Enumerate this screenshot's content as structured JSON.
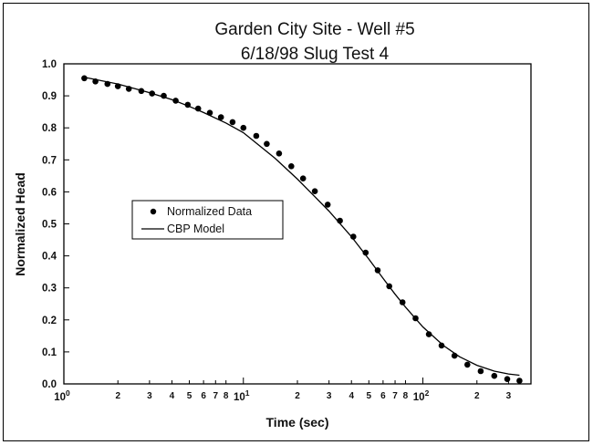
{
  "chart_data": {
    "type": "scatter",
    "title_line1": "Garden City Site - Well #5",
    "title_line2": "6/18/98 Slug Test 4",
    "xlabel": "Time (sec)",
    "ylabel": "Normalized Head",
    "x_scale": "log",
    "xlim": [
      1,
      400
    ],
    "ylim": [
      0,
      1.0
    ],
    "x_major_ticks": [
      {
        "value": 1,
        "base": "10",
        "exp": "0"
      },
      {
        "value": 10,
        "base": "10",
        "exp": "1"
      },
      {
        "value": 100,
        "base": "10",
        "exp": "2"
      }
    ],
    "x_minor_ticks": [
      {
        "value": 2,
        "label": "2"
      },
      {
        "value": 3,
        "label": "3"
      },
      {
        "value": 4,
        "label": "4"
      },
      {
        "value": 5,
        "label": "5"
      },
      {
        "value": 6,
        "label": "6"
      },
      {
        "value": 7,
        "label": "7"
      },
      {
        "value": 8,
        "label": "8"
      },
      {
        "value": 20,
        "label": "2"
      },
      {
        "value": 30,
        "label": "3"
      },
      {
        "value": 40,
        "label": "4"
      },
      {
        "value": 50,
        "label": "5"
      },
      {
        "value": 60,
        "label": "6"
      },
      {
        "value": 70,
        "label": "7"
      },
      {
        "value": 80,
        "label": "8"
      },
      {
        "value": 200,
        "label": "2"
      },
      {
        "value": 300,
        "label": "3"
      }
    ],
    "y_ticks": [
      {
        "value": 0.0,
        "label": "0.0"
      },
      {
        "value": 0.1,
        "label": "0.1"
      },
      {
        "value": 0.2,
        "label": "0.2"
      },
      {
        "value": 0.3,
        "label": "0.3"
      },
      {
        "value": 0.4,
        "label": "0.4"
      },
      {
        "value": 0.5,
        "label": "0.5"
      },
      {
        "value": 0.6,
        "label": "0.6"
      },
      {
        "value": 0.7,
        "label": "0.7"
      },
      {
        "value": 0.8,
        "label": "0.8"
      },
      {
        "value": 0.9,
        "label": "0.9"
      },
      {
        "value": 1.0,
        "label": "1.0"
      }
    ],
    "legend_position": "left-middle",
    "series": [
      {
        "name": "Normalized Data",
        "style": "points",
        "color": "#000000",
        "points": [
          [
            1.3,
            0.955
          ],
          [
            1.5,
            0.945
          ],
          [
            1.75,
            0.937
          ],
          [
            2.0,
            0.93
          ],
          [
            2.3,
            0.922
          ],
          [
            2.7,
            0.915
          ],
          [
            3.1,
            0.907
          ],
          [
            3.6,
            0.9
          ],
          [
            4.2,
            0.885
          ],
          [
            4.9,
            0.872
          ],
          [
            5.6,
            0.86
          ],
          [
            6.5,
            0.847
          ],
          [
            7.5,
            0.833
          ],
          [
            8.7,
            0.818
          ],
          [
            10.0,
            0.8
          ],
          [
            11.8,
            0.775
          ],
          [
            13.5,
            0.75
          ],
          [
            15.8,
            0.72
          ],
          [
            18.5,
            0.68
          ],
          [
            21.5,
            0.642
          ],
          [
            25.0,
            0.602
          ],
          [
            29.5,
            0.56
          ],
          [
            34.5,
            0.51
          ],
          [
            41.0,
            0.46
          ],
          [
            48.0,
            0.41
          ],
          [
            56.0,
            0.355
          ],
          [
            65.0,
            0.305
          ],
          [
            77.0,
            0.255
          ],
          [
            91.0,
            0.205
          ],
          [
            108.0,
            0.155
          ],
          [
            127.0,
            0.12
          ],
          [
            150.0,
            0.088
          ],
          [
            177.0,
            0.06
          ],
          [
            210.0,
            0.04
          ],
          [
            250.0,
            0.025
          ],
          [
            295.0,
            0.015
          ],
          [
            345.0,
            0.01
          ]
        ]
      },
      {
        "name": "CBP Model",
        "style": "line",
        "color": "#000000",
        "points": [
          [
            1.3,
            0.958
          ],
          [
            2.0,
            0.937
          ],
          [
            3.0,
            0.91
          ],
          [
            4.0,
            0.888
          ],
          [
            5.0,
            0.867
          ],
          [
            6.0,
            0.848
          ],
          [
            8.0,
            0.815
          ],
          [
            10.0,
            0.785
          ],
          [
            15.0,
            0.705
          ],
          [
            20.0,
            0.64
          ],
          [
            25.0,
            0.585
          ],
          [
            30.0,
            0.54
          ],
          [
            40.0,
            0.46
          ],
          [
            50.0,
            0.39
          ],
          [
            60.0,
            0.33
          ],
          [
            70.0,
            0.28
          ],
          [
            80.0,
            0.24
          ],
          [
            100.0,
            0.178
          ],
          [
            130.0,
            0.12
          ],
          [
            160.0,
            0.085
          ],
          [
            200.0,
            0.058
          ],
          [
            250.0,
            0.04
          ],
          [
            300.0,
            0.031
          ],
          [
            345.0,
            0.027
          ]
        ]
      }
    ]
  }
}
